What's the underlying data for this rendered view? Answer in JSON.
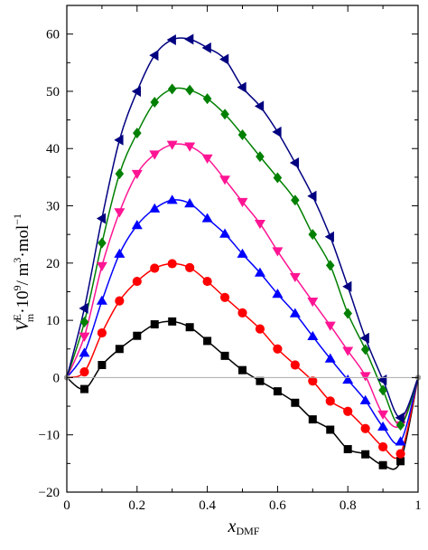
{
  "chart_data": {
    "type": "scatter",
    "title": "",
    "xlabel_main": "x",
    "xlabel_sub": "DMF",
    "ylabel_parts": {
      "v": "V",
      "sup_e": "E",
      "sub_m": "m",
      "mid": "·10",
      "exp9": "9",
      "unit": "/ m",
      "exp3": "3",
      "mol": "·mol",
      "expm1": "−1"
    },
    "xlim": [
      0,
      1
    ],
    "ylim": [
      -20,
      65
    ],
    "xticks": [
      "0",
      "0.2",
      "0.4",
      "0.6",
      "0.8",
      "1"
    ],
    "xtick_values": [
      0,
      0.2,
      0.4,
      0.6,
      0.8,
      1
    ],
    "yticks": [
      "−20",
      "−10",
      "0",
      "10",
      "20",
      "30",
      "40",
      "50",
      "60"
    ],
    "ytick_values": [
      -20,
      -10,
      0,
      10,
      20,
      30,
      40,
      50,
      60
    ],
    "zero_line": true,
    "grid": false,
    "legend": "none",
    "series": [
      {
        "marker": "square",
        "color": "#000000",
        "x": [
          0,
          0.05,
          0.1,
          0.15,
          0.2,
          0.25,
          0.3,
          0.35,
          0.4,
          0.45,
          0.5,
          0.55,
          0.6,
          0.65,
          0.7,
          0.75,
          0.8,
          0.85,
          0.9,
          0.95,
          1
        ],
        "y": [
          0,
          -2.0,
          2.2,
          5.0,
          7.3,
          9.3,
          9.8,
          8.8,
          6.4,
          3.8,
          1.3,
          -0.6,
          -2.4,
          -4.4,
          -7.3,
          -9.1,
          -12.5,
          -13.4,
          -15.3,
          -14.6,
          0
        ]
      },
      {
        "marker": "circle",
        "color": "#ff0000",
        "x": [
          0,
          0.05,
          0.1,
          0.15,
          0.2,
          0.25,
          0.3,
          0.35,
          0.4,
          0.45,
          0.5,
          0.55,
          0.6,
          0.65,
          0.7,
          0.75,
          0.8,
          0.85,
          0.9,
          0.95,
          1
        ],
        "y": [
          0,
          1.0,
          7.8,
          13.4,
          16.8,
          19.1,
          19.9,
          19.2,
          16.8,
          14.0,
          11.3,
          8.5,
          5.0,
          2.2,
          -0.6,
          -4.1,
          -5.9,
          -8.9,
          -12.1,
          -13.3,
          0
        ]
      },
      {
        "marker": "triangle-up",
        "color": "#0000ff",
        "x": [
          0,
          0.05,
          0.1,
          0.15,
          0.2,
          0.25,
          0.3,
          0.35,
          0.4,
          0.45,
          0.5,
          0.55,
          0.6,
          0.65,
          0.7,
          0.75,
          0.8,
          0.85,
          0.9,
          0.95,
          1
        ],
        "y": [
          0,
          4.3,
          13.4,
          21.6,
          26.6,
          29.5,
          31.0,
          30.4,
          27.8,
          25.1,
          21.6,
          18.3,
          14.6,
          11.2,
          7.2,
          3.3,
          -0.4,
          -4.0,
          -8.6,
          -11.2,
          0
        ]
      },
      {
        "marker": "triangle-down",
        "color": "#ff1493",
        "x": [
          0,
          0.05,
          0.1,
          0.15,
          0.2,
          0.25,
          0.3,
          0.35,
          0.4,
          0.45,
          0.5,
          0.55,
          0.6,
          0.65,
          0.7,
          0.75,
          0.8,
          0.85,
          0.9,
          0.95,
          1
        ],
        "y": [
          0,
          7.2,
          19.5,
          28.9,
          35.6,
          39.0,
          40.7,
          40.4,
          38.3,
          34.6,
          30.7,
          26.9,
          22.1,
          17.6,
          13.3,
          9.1,
          4.7,
          0.3,
          -6.4,
          -8.3,
          0
        ]
      },
      {
        "marker": "diamond",
        "color": "#008000",
        "x": [
          0,
          0.05,
          0.1,
          0.15,
          0.2,
          0.25,
          0.3,
          0.35,
          0.4,
          0.45,
          0.5,
          0.55,
          0.6,
          0.65,
          0.7,
          0.75,
          0.8,
          0.85,
          0.9,
          0.95,
          1
        ],
        "y": [
          0,
          9.7,
          23.5,
          35.6,
          42.7,
          48.1,
          50.4,
          50.2,
          48.7,
          46.0,
          42.4,
          38.6,
          34.9,
          31.0,
          25.0,
          19.6,
          11.2,
          4.9,
          -2.2,
          -8.3,
          0
        ]
      },
      {
        "marker": "triangle-left",
        "color": "#000080",
        "x": [
          0,
          0.05,
          0.1,
          0.15,
          0.2,
          0.25,
          0.3,
          0.35,
          0.4,
          0.45,
          0.5,
          0.55,
          0.6,
          0.65,
          0.7,
          0.75,
          0.8,
          0.85,
          0.9,
          0.95,
          1
        ],
        "y": [
          0,
          12.1,
          27.8,
          41.5,
          50.0,
          56.3,
          59.0,
          59.1,
          57.6,
          55.6,
          50.7,
          47.4,
          42.9,
          37.5,
          31.7,
          24.6,
          15.9,
          6.9,
          -0.4,
          -7.0,
          0
        ]
      }
    ]
  }
}
